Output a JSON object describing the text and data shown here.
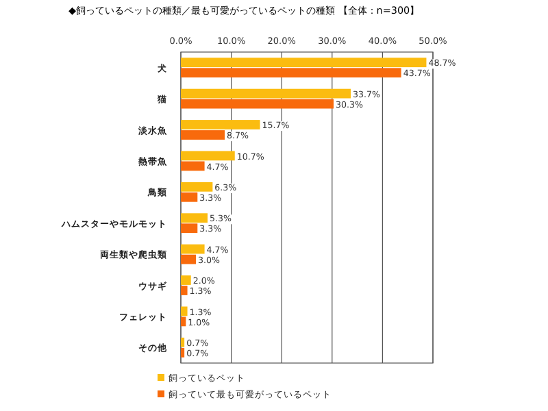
{
  "chart_data": {
    "type": "bar",
    "orientation": "horizontal",
    "title": "◆飼っているペットの種類／最も可愛がっているペットの種類 【全体：n=300】",
    "categories": [
      "犬",
      "猫",
      "淡水魚",
      "熱帯魚",
      "鳥類",
      "ハムスターやモルモット",
      "両生類や爬虫類",
      "ウサギ",
      "フェレット",
      "その他"
    ],
    "series": [
      {
        "name": "飼っているペット",
        "color": "#fbbc10",
        "values": [
          48.7,
          33.7,
          15.7,
          10.7,
          6.3,
          5.3,
          4.7,
          2.0,
          1.3,
          0.7
        ],
        "value_labels": [
          "48.7%",
          "33.7%",
          "15.7%",
          "10.7%",
          "6.3%",
          "5.3%",
          "4.7%",
          "2.0%",
          "1.3%",
          "0.7%"
        ]
      },
      {
        "name": "飼っていて最も可愛がっているペット",
        "color": "#f86a0c",
        "values": [
          43.7,
          30.3,
          8.7,
          4.7,
          3.3,
          3.3,
          3.0,
          1.3,
          1.0,
          0.7
        ],
        "value_labels": [
          "43.7%",
          "30.3%",
          "8.7%",
          "4.7%",
          "3.3%",
          "3.3%",
          "3.0%",
          "1.3%",
          "1.0%",
          "0.7%"
        ]
      }
    ],
    "xlim": [
      0,
      50
    ],
    "xticks": [
      {
        "value": 0,
        "label": "0.0%"
      },
      {
        "value": 10,
        "label": "10.0%"
      },
      {
        "value": 20,
        "label": "20.0%"
      },
      {
        "value": 30,
        "label": "30.0%"
      },
      {
        "value": 40,
        "label": "40.0%"
      },
      {
        "value": 50,
        "label": "50.0%"
      }
    ],
    "grid": "x",
    "legend": "bottom left"
  }
}
